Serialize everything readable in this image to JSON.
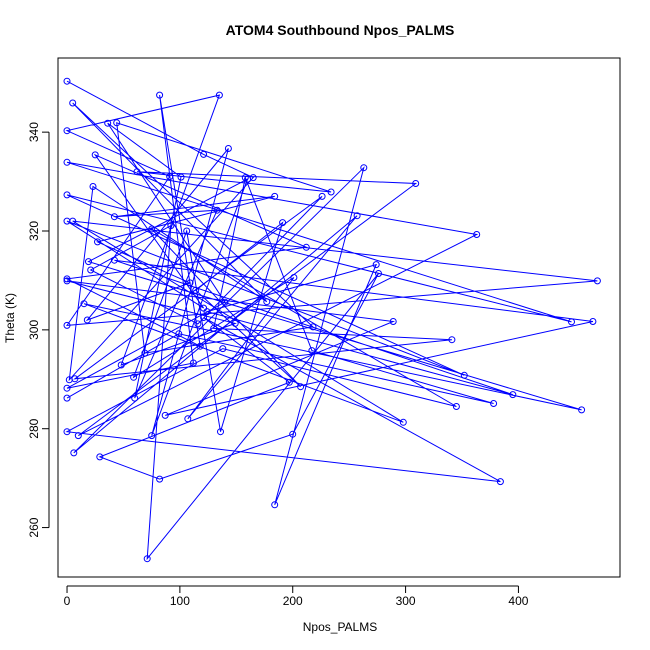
{
  "chart_data": {
    "type": "line",
    "title": "ATOM4 Southbound Npos_PALMS",
    "xlabel": "Npos_PALMS",
    "ylabel": "Theta (K)",
    "xlim": [
      -8,
      490
    ],
    "ylim": [
      250,
      355
    ],
    "xticks": [
      0,
      100,
      200,
      300,
      400
    ],
    "yticks": [
      260,
      280,
      300,
      320,
      340
    ],
    "grid": false,
    "legend": "none",
    "markers": "open-circle",
    "series_color": "#0000ff",
    "series": [
      {
        "points": [
          [
            0,
            350.3
          ],
          [
            121,
            335.5
          ],
          [
            165,
            330.8
          ],
          [
            2,
            289.9
          ],
          [
            23,
            329.0
          ],
          [
            177,
            305.7
          ],
          [
            5,
            345.9
          ],
          [
            218,
            300.6
          ],
          [
            69,
            295.3
          ],
          [
            44,
            341.9
          ],
          [
            234,
            327.9
          ],
          [
            62,
            332.0
          ],
          [
            309,
            329.6
          ],
          [
            10,
            278.6
          ],
          [
            363,
            319.3
          ],
          [
            0,
            333.9
          ],
          [
            447,
            301.6
          ],
          [
            0,
            327.3
          ],
          [
            352,
            290.8
          ],
          [
            0,
            322.0
          ],
          [
            121,
            304.4
          ],
          [
            25,
            335.4
          ],
          [
            212,
            316.7
          ],
          [
            0,
            310.3
          ],
          [
            118,
            296.7
          ],
          [
            82,
            347.5
          ],
          [
            112,
            293.3
          ],
          [
            0,
            288.2
          ],
          [
            140,
            305.6
          ],
          [
            36,
            341.8
          ],
          [
            101,
            330.9
          ],
          [
            60,
            286.2
          ],
          [
            133,
            324.2
          ],
          [
            42,
            322.9
          ],
          [
            184,
            327.0
          ],
          [
            27,
            317.8
          ],
          [
            109,
            309.5
          ],
          [
            18,
            302.0
          ],
          [
            143,
            336.7
          ],
          [
            75,
            278.6
          ],
          [
            160,
            330.5
          ],
          [
            19,
            313.8
          ],
          [
            456,
            283.8
          ],
          [
            15,
            305.3
          ],
          [
            298,
            281.3
          ],
          [
            5,
            322.0
          ],
          [
            470,
            309.9
          ],
          [
            0,
            300.9
          ],
          [
            91,
            331.0
          ],
          [
            0,
            340.3
          ],
          [
            135,
            347.5
          ],
          [
            48,
            292.9
          ],
          [
            149,
            301.3
          ],
          [
            0,
            309.9
          ],
          [
            289,
            301.7
          ],
          [
            87,
            282.7
          ],
          [
            466,
            301.7
          ],
          [
            42,
            314.1
          ],
          [
            395,
            286.9
          ],
          [
            124,
            303.7
          ],
          [
            274,
            313.2
          ],
          [
            184,
            264.6
          ],
          [
            263,
            332.8
          ],
          [
            6,
            275.1
          ],
          [
            257,
            323.1
          ],
          [
            107,
            282.0
          ],
          [
            201,
            310.6
          ],
          [
            59,
            290.4
          ],
          [
            106,
            320.0
          ],
          [
            136,
            279.4
          ],
          [
            191,
            321.7
          ],
          [
            114,
            308.0
          ],
          [
            207,
            288.5
          ],
          [
            75,
            320.4
          ],
          [
            345,
            284.5
          ],
          [
            138,
            296.2
          ],
          [
            0,
            279.4
          ],
          [
            384,
            269.3
          ],
          [
            121,
            302.5
          ],
          [
            197,
            289.4
          ],
          [
            29,
            274.3
          ],
          [
            82,
            269.8
          ],
          [
            200,
            278.9
          ],
          [
            276,
            311.4
          ],
          [
            71,
            253.7
          ],
          [
            92,
            321.1
          ],
          [
            21,
            312.1
          ],
          [
            116,
            301.2
          ],
          [
            226,
            327.0
          ],
          [
            7,
            290.1
          ],
          [
            341,
            298.0
          ],
          [
            130,
            300.3
          ],
          [
            158,
            330.8
          ],
          [
            217,
            295.8
          ],
          [
            378,
            285.1
          ],
          [
            99,
            299.2
          ],
          [
            0,
            286.2
          ]
        ]
      }
    ]
  }
}
